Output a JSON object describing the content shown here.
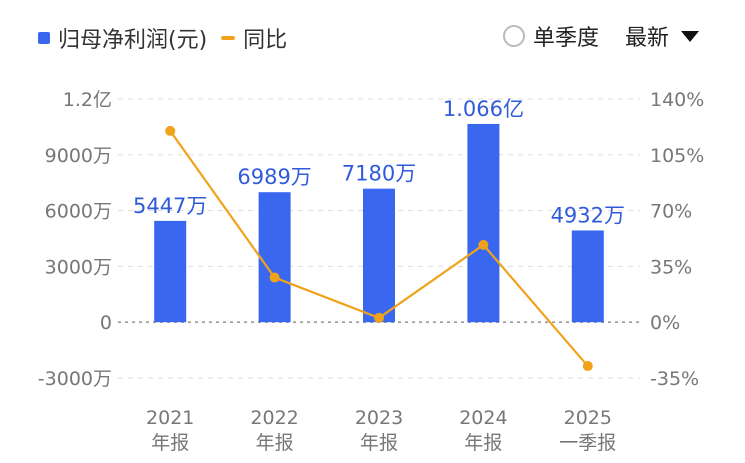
{
  "legend": {
    "bar_label": "归母净利润(元)",
    "line_label": "同比"
  },
  "controls": {
    "period_label": "单季度",
    "period_checked": false,
    "sort_label": "最新"
  },
  "colors": {
    "bar": "#3a67f0",
    "line": "#f0a21b",
    "label": "#2f5bd9",
    "axis_text": "#777777",
    "grid": "#dddddd"
  },
  "chart_data": {
    "type": "bar",
    "categories": [
      [
        "2021",
        "年报"
      ],
      [
        "2022",
        "年报"
      ],
      [
        "2023",
        "年报"
      ],
      [
        "2024",
        "年报"
      ],
      [
        "2025",
        "一季报"
      ]
    ],
    "series": [
      {
        "name": "归母净利润(元)",
        "type": "bar",
        "axis": "left",
        "values": [
          54470000,
          69890000,
          71800000,
          106600000,
          49320000
        ],
        "data_labels": [
          "5447万",
          "6989万",
          "7180万",
          "1.066亿",
          "4932万"
        ]
      },
      {
        "name": "同比",
        "type": "line",
        "axis": "right",
        "values": [
          120,
          28,
          2.7,
          48.5,
          -27.5
        ]
      }
    ],
    "y_left": {
      "ylim": [
        -30000000,
        120000000
      ],
      "ticks": [
        -30000000,
        0,
        30000000,
        60000000,
        90000000,
        120000000
      ],
      "tick_labels": [
        "-3000万",
        "0",
        "3000万",
        "6000万",
        "9000万",
        "1.2亿"
      ]
    },
    "y_right": {
      "ylim": [
        -35,
        140
      ],
      "ticks": [
        -35,
        0,
        35,
        70,
        105,
        140
      ],
      "tick_labels": [
        "-35%",
        "0%",
        "35%",
        "70%",
        "105%",
        "140%"
      ]
    },
    "grid": true,
    "legend_position": "top-left"
  }
}
